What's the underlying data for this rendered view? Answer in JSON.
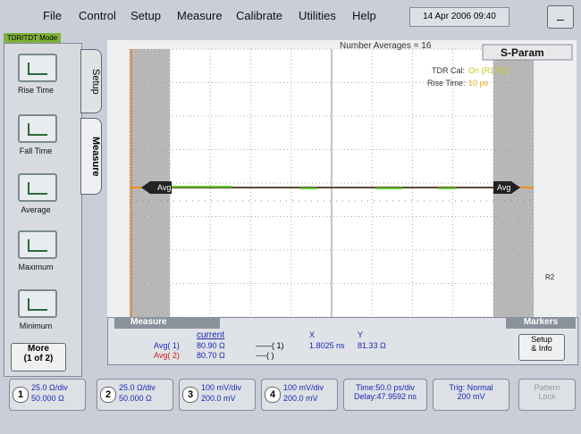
{
  "menu": {
    "items": [
      "File",
      "Control",
      "Setup",
      "Measure",
      "Calibrate",
      "Utilities",
      "Help"
    ],
    "datetime": "14 Apr 2006 09:40",
    "minimize": "_"
  },
  "mode": "TDR/TDT Mode",
  "tabs": [
    "Setup",
    "Measure"
  ],
  "tools": [
    "Rise Time",
    "Fall Time",
    "Average",
    "Maximum",
    "Minimum"
  ],
  "more": {
    "line1": "More",
    "line2": "(1 of 2)"
  },
  "display": {
    "averages": "Number Averages = 16",
    "sparam": "S-Param",
    "tdr_cal_label": "TDR Cal:",
    "tdr_cal_value": "On (R1 R2)",
    "rise_time_label": "Rise Time:",
    "rise_time_value": "10 ps",
    "marker_left": "Avg",
    "marker_right": "Avg",
    "ref": "R2"
  },
  "measure": {
    "title": "Measure",
    "column": "current",
    "rows": [
      {
        "name": "Avg( 1)",
        "value": "80.90 Ω",
        "trace": "( 1)"
      },
      {
        "name": "Avg( 2)",
        "value": "80.70 Ω",
        "trace": "( )"
      }
    ],
    "x_label": "X",
    "x_value": "1.8025 ns",
    "y_label": "Y",
    "y_value": "81.33 Ω",
    "markers": "Markers",
    "setup_line1": "Setup",
    "setup_line2": "& Info"
  },
  "status": {
    "channels": [
      {
        "num": "1",
        "line1": "25.0 Ω/div",
        "line2": "50.000 Ω"
      },
      {
        "num": "2",
        "line1": "25.0 Ω/div",
        "line2": "50.000 Ω"
      },
      {
        "num": "3",
        "line1": "100 mV/div",
        "line2": "200.0 mV"
      },
      {
        "num": "4",
        "line1": "100 mV/div",
        "line2": "200.0 mV"
      }
    ],
    "time": {
      "line1": "Time:50.0 ps/div",
      "line2": "Delay:47.9592 ns"
    },
    "trig": {
      "line1": "Trig: Normal",
      "line2": "200 mV"
    },
    "pattern": {
      "line1": "Pattern",
      "line2": "Lock"
    }
  }
}
